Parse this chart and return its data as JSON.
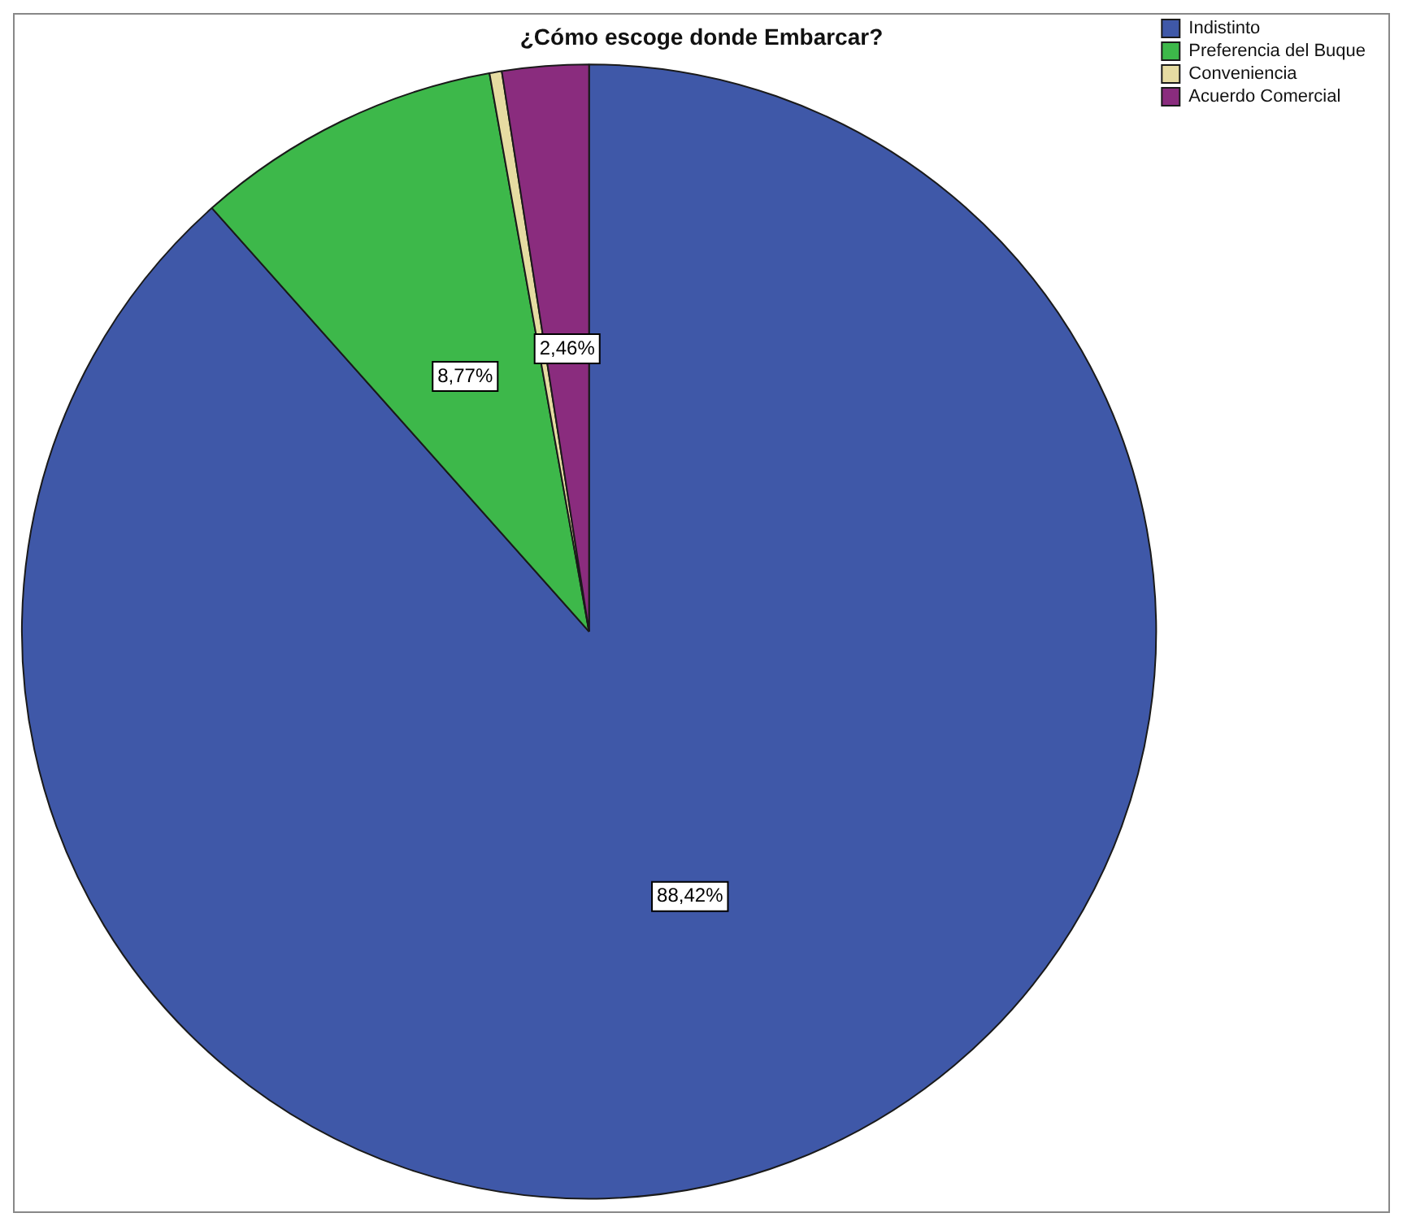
{
  "chart_data": {
    "type": "pie",
    "title": "¿Cómo escoge donde Embarcar?",
    "categories": [
      "Indistinto",
      "Preferencia del Buque",
      "Conveniencia",
      "Acuerdo Comercial"
    ],
    "values": [
      88.42,
      8.77,
      0.35,
      2.46
    ],
    "colors": [
      "#3f58a8",
      "#3db84a",
      "#e6dca2",
      "#8a2c7e"
    ],
    "value_labels": [
      "88,42%",
      "8,77%",
      null,
      "2,46%"
    ],
    "legend": "top right"
  }
}
